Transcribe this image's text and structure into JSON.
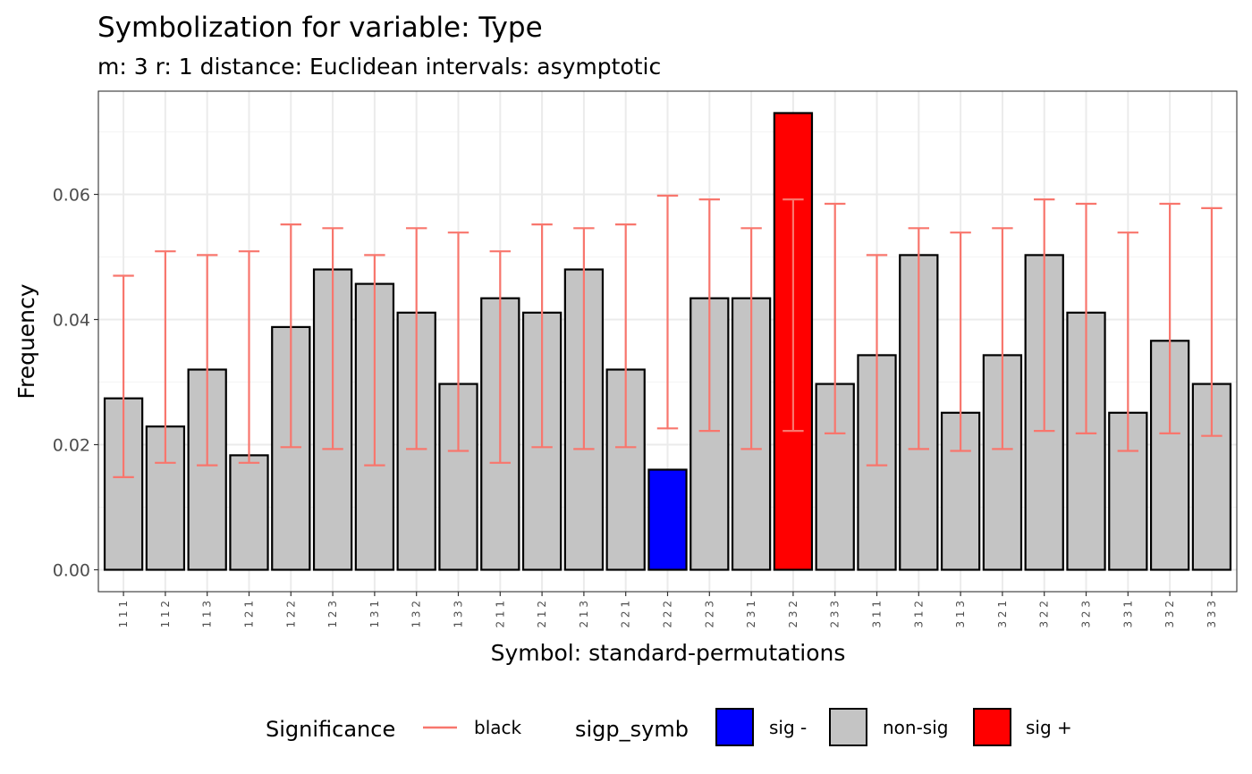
{
  "chart_data": {
    "type": "bar",
    "title": "Symbolization for variable: Type",
    "subtitle": "m: 3  r:  1  distance:  Euclidean  intervals:  asymptotic",
    "xlabel": "Symbol: standard-permutations",
    "ylabel": "Frequency",
    "ylim": [
      -0.0035,
      0.0765
    ],
    "yticks": [
      0.0,
      0.02,
      0.04,
      0.06
    ],
    "ytick_labels": [
      "0.00",
      "0.02",
      "0.04",
      "0.06"
    ],
    "grid": true,
    "legend_position": "bottom",
    "categories": [
      "1 1 1",
      "1 1 2",
      "1 1 3",
      "1 2 1",
      "1 2 2",
      "1 2 3",
      "1 3 1",
      "1 3 2",
      "1 3 3",
      "2 1 1",
      "2 1 2",
      "2 1 3",
      "2 2 1",
      "2 2 2",
      "2 2 3",
      "2 3 1",
      "2 3 2",
      "2 3 3",
      "3 1 1",
      "3 1 2",
      "3 1 3",
      "3 2 1",
      "3 2 2",
      "3 2 3",
      "3 3 1",
      "3 3 2",
      "3 3 3"
    ],
    "values": [
      0.0274,
      0.0229,
      0.032,
      0.0183,
      0.0388,
      0.048,
      0.0457,
      0.0411,
      0.0297,
      0.0434,
      0.0411,
      0.048,
      0.032,
      0.016,
      0.0434,
      0.0434,
      0.073,
      0.0297,
      0.0343,
      0.0503,
      0.0251,
      0.0343,
      0.0503,
      0.0411,
      0.0251,
      0.0366,
      0.0297
    ],
    "error_lower": [
      0.0148,
      0.0171,
      0.0167,
      0.0171,
      0.0196,
      0.0193,
      0.0167,
      0.0193,
      0.019,
      0.0171,
      0.0196,
      0.0193,
      0.0196,
      0.0226,
      0.0222,
      0.0193,
      0.0222,
      0.0218,
      0.0167,
      0.0193,
      0.019,
      0.0193,
      0.0222,
      0.0218,
      0.019,
      0.0218,
      0.0214
    ],
    "error_upper": [
      0.047,
      0.0509,
      0.0503,
      0.0509,
      0.0552,
      0.0546,
      0.0503,
      0.0546,
      0.0539,
      0.0509,
      0.0552,
      0.0546,
      0.0552,
      0.0598,
      0.0592,
      0.0546,
      0.0592,
      0.0585,
      0.0503,
      0.0546,
      0.0539,
      0.0546,
      0.0592,
      0.0585,
      0.0539,
      0.0585,
      0.0578
    ],
    "significance": [
      "non-sig",
      "non-sig",
      "non-sig",
      "non-sig",
      "non-sig",
      "non-sig",
      "non-sig",
      "non-sig",
      "non-sig",
      "non-sig",
      "non-sig",
      "non-sig",
      "non-sig",
      "sig -",
      "non-sig",
      "non-sig",
      "sig +",
      "non-sig",
      "non-sig",
      "non-sig",
      "non-sig",
      "non-sig",
      "non-sig",
      "non-sig",
      "non-sig",
      "non-sig",
      "non-sig"
    ],
    "colors": {
      "sig -": "#0000ff",
      "non-sig": "#c4c4c4",
      "sig +": "#ff0000",
      "errorbar": "#f8766d",
      "bar_outline": "#000000",
      "grid_major": "#ebebeb",
      "grid_minor": "#f5f5f5",
      "panel_border": "#333333"
    },
    "legend": {
      "errorbar_title": "Significance",
      "errorbar_entry": "black",
      "fill_title": "sigp_symb",
      "fill_entries": [
        "sig -",
        "non-sig",
        "sig +"
      ]
    }
  }
}
